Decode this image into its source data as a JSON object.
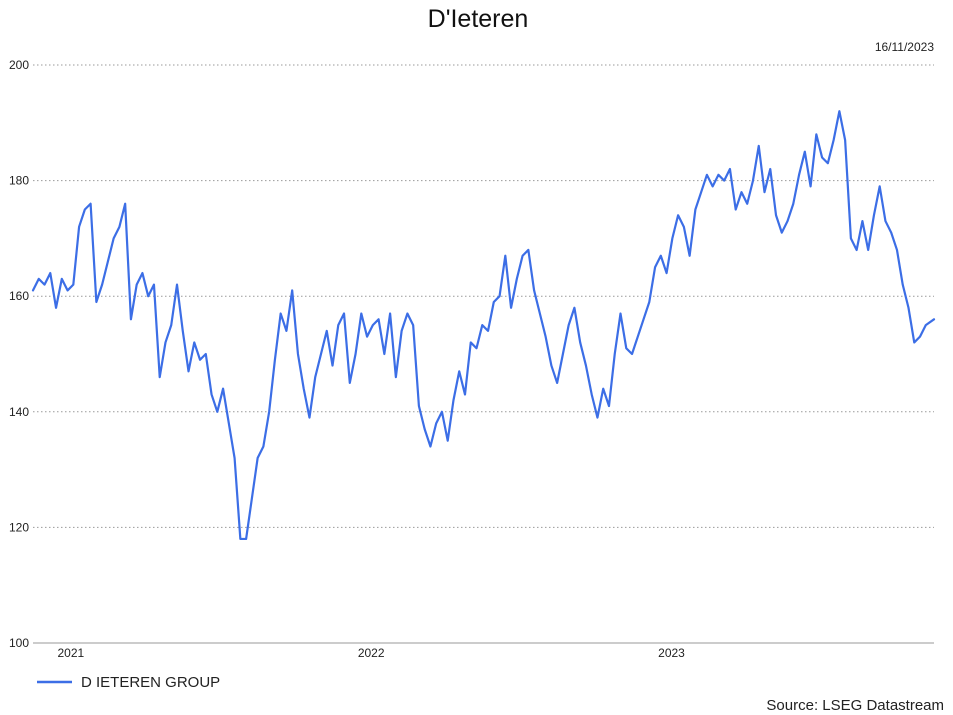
{
  "chart_data": {
    "type": "line",
    "title": "D'Ieteren",
    "date": "16/11/2023",
    "source": "Source: LSEG Datastream",
    "ylim": [
      100,
      200
    ],
    "yticks": [
      100,
      120,
      140,
      160,
      180,
      200
    ],
    "xticks": [
      {
        "label": "2021",
        "value": "2021-01-01"
      },
      {
        "label": "2022",
        "value": "2022-01-01"
      },
      {
        "label": "2023",
        "value": "2023-01-01"
      }
    ],
    "xlim": [
      "2020-11-16",
      "2023-11-16"
    ],
    "grid": true,
    "legend_position": "bottom-left",
    "colors": {
      "line": "#3c6ee6"
    },
    "series": [
      {
        "name": "D IETEREN GROUP",
        "points": [
          [
            "2020-11-16",
            161
          ],
          [
            "2020-11-23",
            163
          ],
          [
            "2020-11-30",
            162
          ],
          [
            "2020-12-07",
            164
          ],
          [
            "2020-12-14",
            158
          ],
          [
            "2020-12-21",
            163
          ],
          [
            "2020-12-28",
            161
          ],
          [
            "2021-01-04",
            162
          ],
          [
            "2021-01-11",
            172
          ],
          [
            "2021-01-18",
            175
          ],
          [
            "2021-01-25",
            176
          ],
          [
            "2021-02-01",
            159
          ],
          [
            "2021-02-08",
            162
          ],
          [
            "2021-02-15",
            166
          ],
          [
            "2021-02-22",
            170
          ],
          [
            "2021-03-01",
            172
          ],
          [
            "2021-03-08",
            176
          ],
          [
            "2021-03-15",
            156
          ],
          [
            "2021-03-22",
            162
          ],
          [
            "2021-03-29",
            164
          ],
          [
            "2021-04-05",
            160
          ],
          [
            "2021-04-12",
            162
          ],
          [
            "2021-04-19",
            146
          ],
          [
            "2021-04-26",
            152
          ],
          [
            "2021-05-03",
            155
          ],
          [
            "2021-05-10",
            162
          ],
          [
            "2021-05-17",
            154
          ],
          [
            "2021-05-24",
            147
          ],
          [
            "2021-05-31",
            152
          ],
          [
            "2021-06-07",
            149
          ],
          [
            "2021-06-14",
            150
          ],
          [
            "2021-06-21",
            143
          ],
          [
            "2021-06-28",
            140
          ],
          [
            "2021-07-05",
            144
          ],
          [
            "2021-07-12",
            138
          ],
          [
            "2021-07-19",
            132
          ],
          [
            "2021-07-26",
            118
          ],
          [
            "2021-08-02",
            118
          ],
          [
            "2021-08-09",
            125
          ],
          [
            "2021-08-16",
            132
          ],
          [
            "2021-08-23",
            134
          ],
          [
            "2021-08-30",
            140
          ],
          [
            "2021-09-06",
            149
          ],
          [
            "2021-09-13",
            157
          ],
          [
            "2021-09-20",
            154
          ],
          [
            "2021-09-27",
            161
          ],
          [
            "2021-10-04",
            150
          ],
          [
            "2021-10-11",
            144
          ],
          [
            "2021-10-18",
            139
          ],
          [
            "2021-10-25",
            146
          ],
          [
            "2021-11-01",
            150
          ],
          [
            "2021-11-08",
            154
          ],
          [
            "2021-11-15",
            148
          ],
          [
            "2021-11-22",
            155
          ],
          [
            "2021-11-29",
            157
          ],
          [
            "2021-12-06",
            145
          ],
          [
            "2021-12-13",
            150
          ],
          [
            "2021-12-20",
            157
          ],
          [
            "2021-12-27",
            153
          ],
          [
            "2022-01-03",
            155
          ],
          [
            "2022-01-10",
            156
          ],
          [
            "2022-01-17",
            150
          ],
          [
            "2022-01-24",
            157
          ],
          [
            "2022-01-31",
            146
          ],
          [
            "2022-02-07",
            154
          ],
          [
            "2022-02-14",
            157
          ],
          [
            "2022-02-21",
            155
          ],
          [
            "2022-02-28",
            141
          ],
          [
            "2022-03-07",
            137
          ],
          [
            "2022-03-14",
            134
          ],
          [
            "2022-03-21",
            138
          ],
          [
            "2022-03-28",
            140
          ],
          [
            "2022-04-04",
            135
          ],
          [
            "2022-04-11",
            142
          ],
          [
            "2022-04-18",
            147
          ],
          [
            "2022-04-25",
            143
          ],
          [
            "2022-05-02",
            152
          ],
          [
            "2022-05-09",
            151
          ],
          [
            "2022-05-16",
            155
          ],
          [
            "2022-05-23",
            154
          ],
          [
            "2022-05-30",
            159
          ],
          [
            "2022-06-06",
            160
          ],
          [
            "2022-06-13",
            167
          ],
          [
            "2022-06-20",
            158
          ],
          [
            "2022-06-27",
            163
          ],
          [
            "2022-07-04",
            167
          ],
          [
            "2022-07-11",
            168
          ],
          [
            "2022-07-18",
            161
          ],
          [
            "2022-07-25",
            157
          ],
          [
            "2022-08-01",
            153
          ],
          [
            "2022-08-08",
            148
          ],
          [
            "2022-08-15",
            145
          ],
          [
            "2022-08-22",
            150
          ],
          [
            "2022-08-29",
            155
          ],
          [
            "2022-09-05",
            158
          ],
          [
            "2022-09-12",
            152
          ],
          [
            "2022-09-19",
            148
          ],
          [
            "2022-09-26",
            143
          ],
          [
            "2022-10-03",
            139
          ],
          [
            "2022-10-10",
            144
          ],
          [
            "2022-10-17",
            141
          ],
          [
            "2022-10-24",
            150
          ],
          [
            "2022-10-31",
            157
          ],
          [
            "2022-11-07",
            151
          ],
          [
            "2022-11-14",
            150
          ],
          [
            "2022-11-21",
            153
          ],
          [
            "2022-11-28",
            156
          ],
          [
            "2022-12-05",
            159
          ],
          [
            "2022-12-12",
            165
          ],
          [
            "2022-12-19",
            167
          ],
          [
            "2022-12-26",
            164
          ],
          [
            "2023-01-02",
            170
          ],
          [
            "2023-01-09",
            174
          ],
          [
            "2023-01-16",
            172
          ],
          [
            "2023-01-23",
            167
          ],
          [
            "2023-01-30",
            175
          ],
          [
            "2023-02-06",
            178
          ],
          [
            "2023-02-13",
            181
          ],
          [
            "2023-02-20",
            179
          ],
          [
            "2023-02-27",
            181
          ],
          [
            "2023-03-06",
            180
          ],
          [
            "2023-03-13",
            182
          ],
          [
            "2023-03-20",
            175
          ],
          [
            "2023-03-27",
            178
          ],
          [
            "2023-04-03",
            176
          ],
          [
            "2023-04-10",
            180
          ],
          [
            "2023-04-17",
            186
          ],
          [
            "2023-04-24",
            178
          ],
          [
            "2023-05-01",
            182
          ],
          [
            "2023-05-08",
            174
          ],
          [
            "2023-05-15",
            171
          ],
          [
            "2023-05-22",
            173
          ],
          [
            "2023-05-29",
            176
          ],
          [
            "2023-06-05",
            181
          ],
          [
            "2023-06-12",
            185
          ],
          [
            "2023-06-19",
            179
          ],
          [
            "2023-06-26",
            188
          ],
          [
            "2023-07-03",
            184
          ],
          [
            "2023-07-10",
            183
          ],
          [
            "2023-07-17",
            187
          ],
          [
            "2023-07-24",
            192
          ],
          [
            "2023-07-31",
            187
          ],
          [
            "2023-08-07",
            170
          ],
          [
            "2023-08-14",
            168
          ],
          [
            "2023-08-21",
            173
          ],
          [
            "2023-08-28",
            168
          ],
          [
            "2023-09-04",
            174
          ],
          [
            "2023-09-11",
            179
          ],
          [
            "2023-09-18",
            173
          ],
          [
            "2023-09-25",
            171
          ],
          [
            "2023-10-02",
            168
          ],
          [
            "2023-10-09",
            162
          ],
          [
            "2023-10-16",
            158
          ],
          [
            "2023-10-23",
            152
          ],
          [
            "2023-10-30",
            153
          ],
          [
            "2023-11-06",
            155
          ],
          [
            "2023-11-16",
            156
          ]
        ]
      }
    ]
  }
}
